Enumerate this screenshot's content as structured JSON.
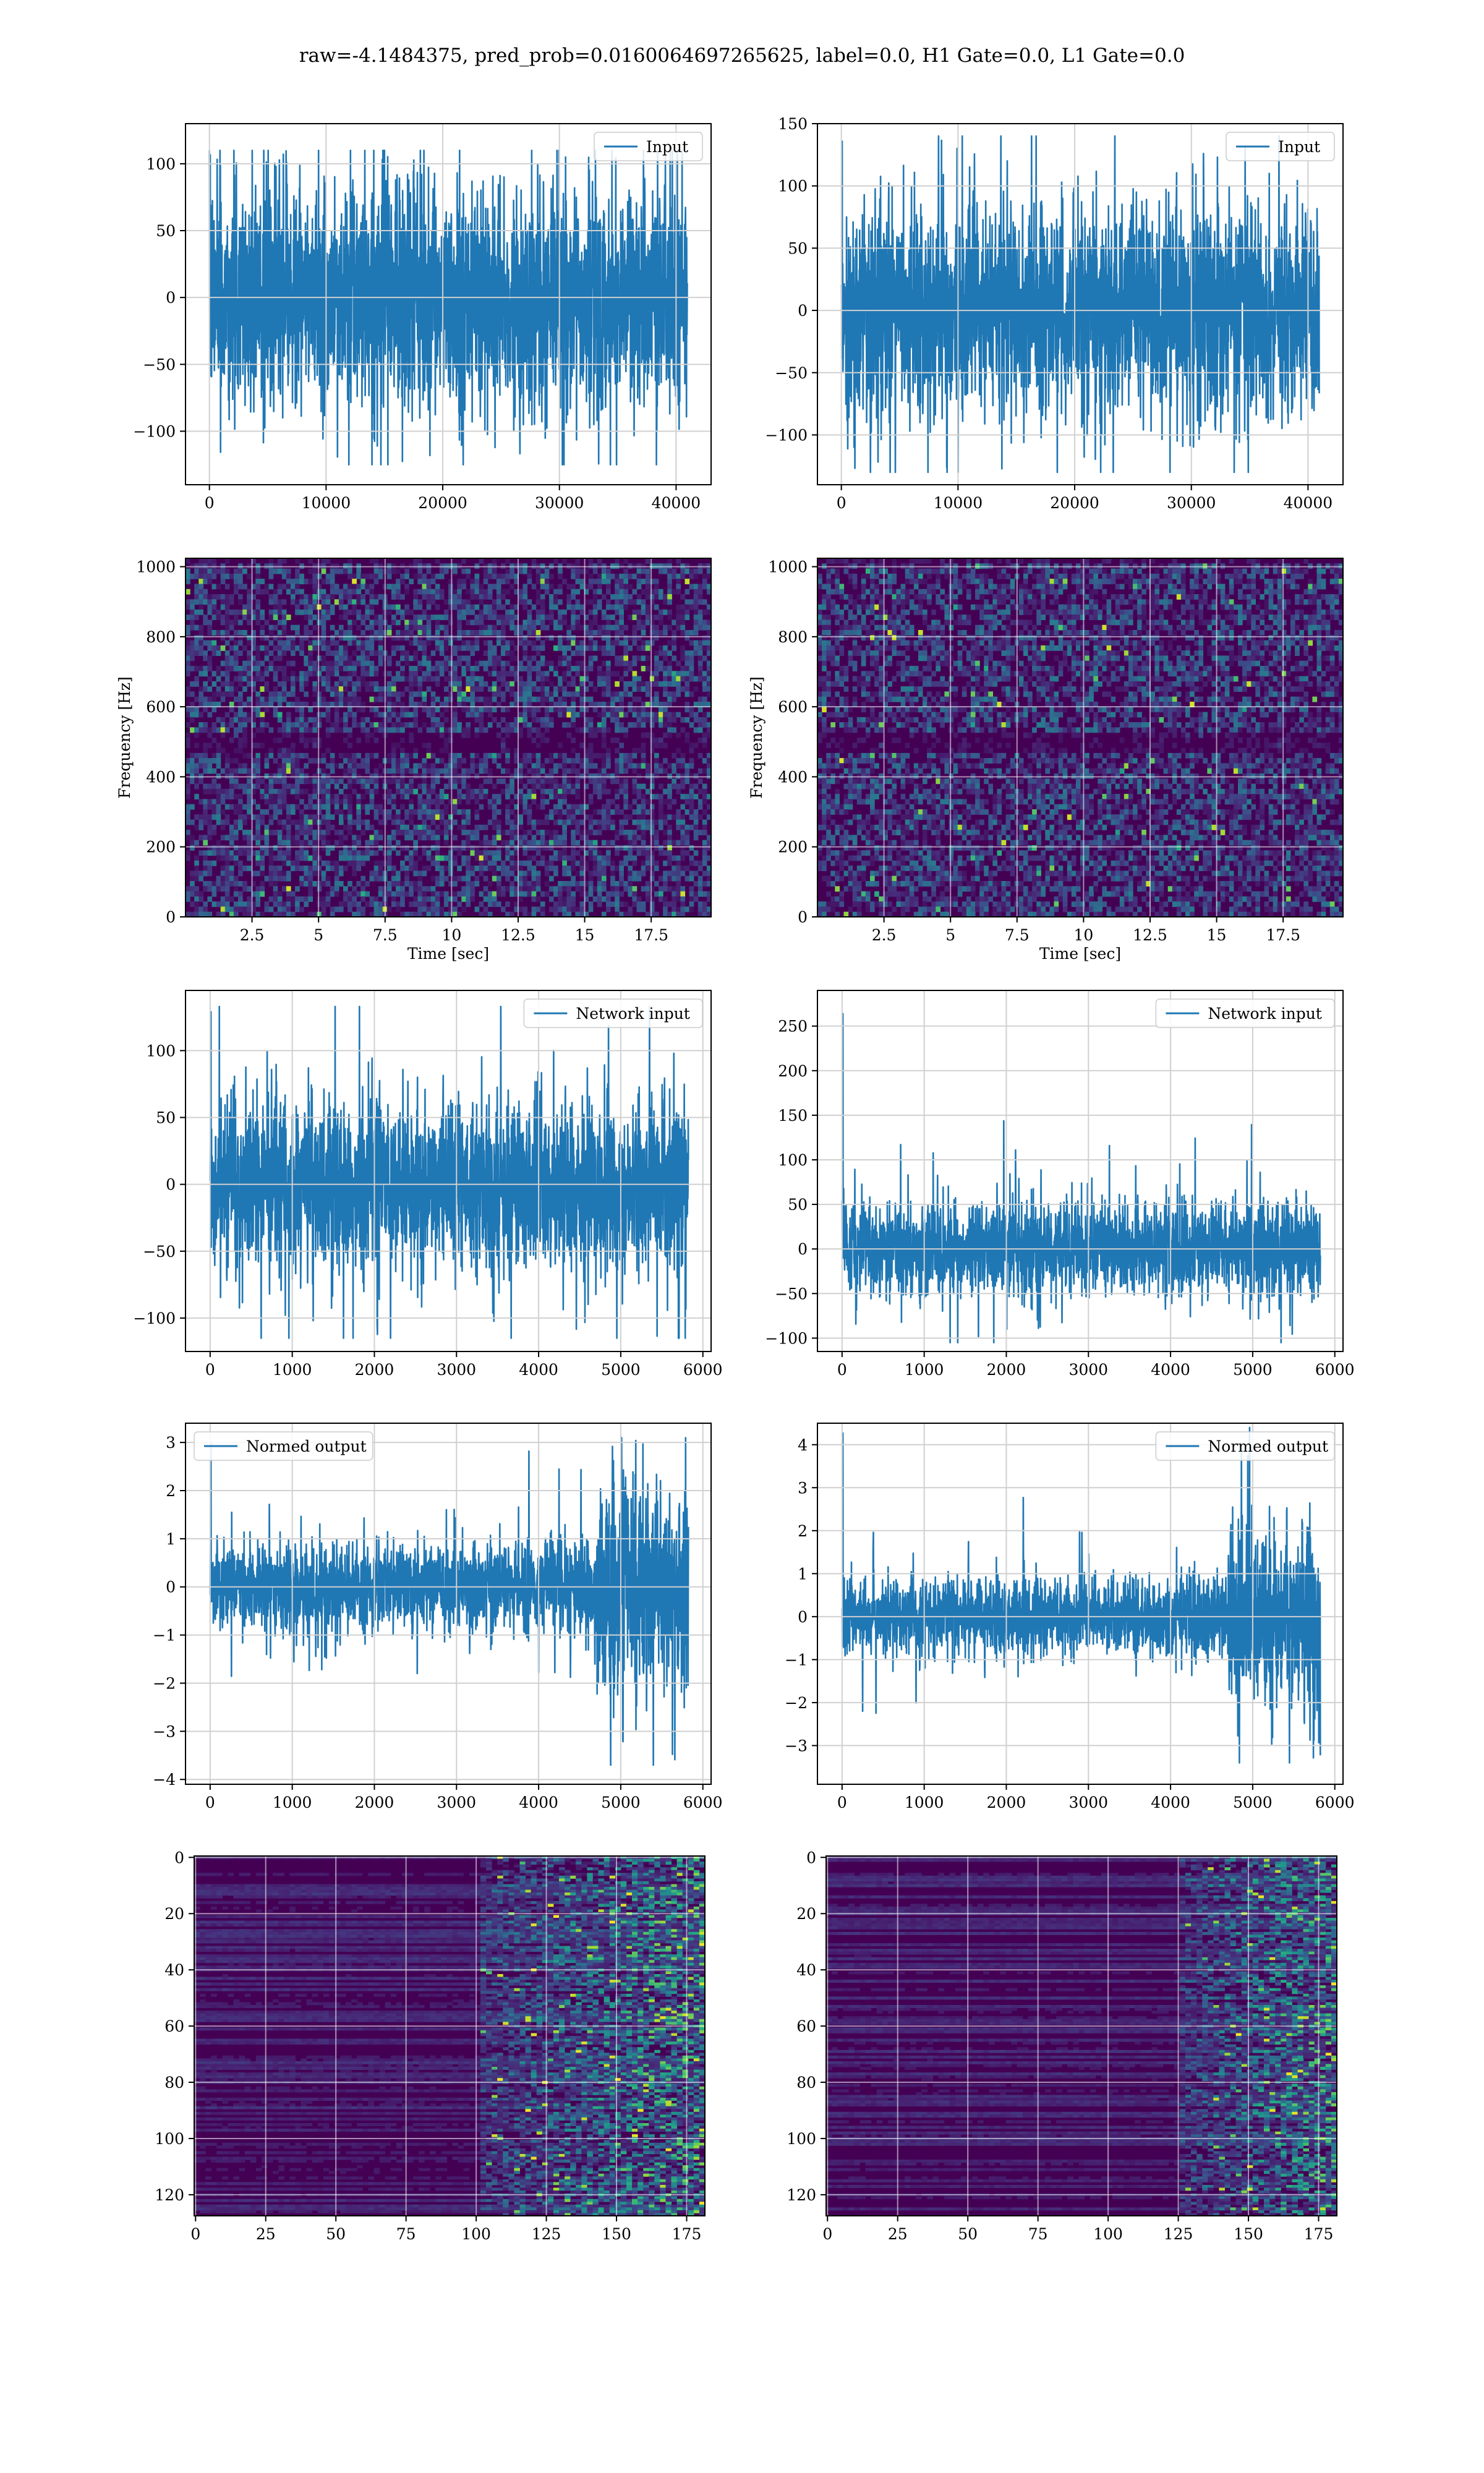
{
  "figure": {
    "suptitle": "raw=-4.1484375, pred_prob=0.0160064697265625, label=0.0, H1 Gate=0.0, L1 Gate=0.0",
    "line_color": "#1f77b4",
    "grid_color": "#d0d0d0",
    "colormap": "viridis"
  },
  "chart_data": [
    {
      "id": "input-h1",
      "type": "line",
      "legend": "Input",
      "legend_loc": "upper right",
      "xlim": [
        -2050,
        43000
      ],
      "ylim": [
        -140,
        130
      ],
      "xticks": [
        0,
        10000,
        20000,
        30000,
        40000
      ],
      "yticks": [
        -100,
        -50,
        0,
        50,
        100
      ],
      "x_range": [
        0,
        40960
      ],
      "noise_core": 42,
      "noise_extreme": [
        -125,
        110
      ]
    },
    {
      "id": "input-l1",
      "type": "line",
      "legend": "Input",
      "legend_loc": "upper right",
      "xlim": [
        -2050,
        43000
      ],
      "ylim": [
        -140,
        150
      ],
      "xticks": [
        0,
        10000,
        20000,
        30000,
        40000
      ],
      "yticks": [
        -100,
        -50,
        0,
        50,
        100,
        150
      ],
      "x_range": [
        0,
        40960
      ],
      "noise_core": 42,
      "noise_extreme": [
        -130,
        140
      ]
    },
    {
      "id": "spec-h1",
      "type": "heatmap",
      "xlabel": "Time [sec]",
      "ylabel": "Frequency [Hz]",
      "xlim": [
        0,
        19.75
      ],
      "ylim": [
        0,
        1024
      ],
      "xticks": [
        2.5,
        5.0,
        7.5,
        10.0,
        12.5,
        15.0,
        17.5
      ],
      "yticks": [
        0,
        200,
        400,
        600,
        800,
        1000
      ],
      "dark_band_hz": [
        480,
        520
      ]
    },
    {
      "id": "spec-l1",
      "type": "heatmap",
      "xlabel": "Time [sec]",
      "ylabel": "Frequency [Hz]",
      "xlim": [
        0,
        19.75
      ],
      "ylim": [
        0,
        1024
      ],
      "xticks": [
        2.5,
        5.0,
        7.5,
        10.0,
        12.5,
        15.0,
        17.5
      ],
      "yticks": [
        0,
        200,
        400,
        600,
        800,
        1000
      ],
      "dark_band_hz": [
        480,
        520
      ]
    },
    {
      "id": "network-input-h1",
      "type": "line",
      "legend": "Network input",
      "legend_loc": "upper right",
      "xlim": [
        -300,
        6100
      ],
      "ylim": [
        -125,
        145
      ],
      "xticks": [
        0,
        1000,
        2000,
        3000,
        4000,
        5000,
        6000
      ],
      "yticks": [
        -100,
        -50,
        0,
        50,
        100
      ],
      "x_range": [
        0,
        5824
      ],
      "noise_core": 32,
      "noise_extreme": [
        -115,
        133
      ]
    },
    {
      "id": "network-input-l1",
      "type": "line",
      "legend": "Network input",
      "legend_loc": "upper right",
      "xlim": [
        -300,
        6100
      ],
      "ylim": [
        -115,
        290
      ],
      "xticks": [
        0,
        1000,
        2000,
        3000,
        4000,
        5000,
        6000
      ],
      "yticks": [
        -100,
        -50,
        0,
        50,
        100,
        150,
        200,
        250
      ],
      "x_range": [
        0,
        5824
      ],
      "noise_core": 26,
      "noise_extreme": [
        -105,
        272
      ]
    },
    {
      "id": "normed-output-h1",
      "type": "line",
      "legend": "Normed output",
      "legend_loc": "upper left",
      "xlim": [
        -300,
        6100
      ],
      "ylim": [
        -4.1,
        3.4
      ],
      "xticks": [
        0,
        1000,
        2000,
        3000,
        4000,
        5000,
        6000
      ],
      "yticks": [
        -4,
        -3,
        -2,
        -1,
        0,
        1,
        2,
        3
      ],
      "x_range": [
        0,
        5824
      ],
      "noise_core": 0.45,
      "burst_start": 4700,
      "noise_extreme": [
        -3.7,
        3.1
      ]
    },
    {
      "id": "normed-output-l1",
      "type": "line",
      "legend": "Normed output",
      "legend_loc": "upper right",
      "xlim": [
        -300,
        6100
      ],
      "ylim": [
        -3.9,
        4.5
      ],
      "xticks": [
        0,
        1000,
        2000,
        3000,
        4000,
        5000,
        6000
      ],
      "yticks": [
        -3,
        -2,
        -1,
        0,
        1,
        2,
        3,
        4
      ],
      "x_range": [
        0,
        5824
      ],
      "noise_core": 0.42,
      "burst_start": 4700,
      "noise_extreme": [
        -3.4,
        4.4
      ]
    },
    {
      "id": "feature-map-h1",
      "type": "heatmap",
      "inverted_y": true,
      "xlim": [
        -0.5,
        181.5
      ],
      "ylim": [
        127.5,
        -0.5
      ],
      "xticks": [
        0,
        25,
        50,
        75,
        100,
        125,
        150,
        175
      ],
      "yticks": [
        0,
        20,
        40,
        60,
        80,
        100,
        120
      ],
      "activity_start": 100
    },
    {
      "id": "feature-map-l1",
      "type": "heatmap",
      "inverted_y": true,
      "xlim": [
        -0.5,
        181.5
      ],
      "ylim": [
        127.5,
        -0.5
      ],
      "xticks": [
        0,
        25,
        50,
        75,
        100,
        125,
        150,
        175
      ],
      "yticks": [
        0,
        20,
        40,
        60,
        80,
        100,
        120
      ],
      "activity_start": 125
    }
  ]
}
